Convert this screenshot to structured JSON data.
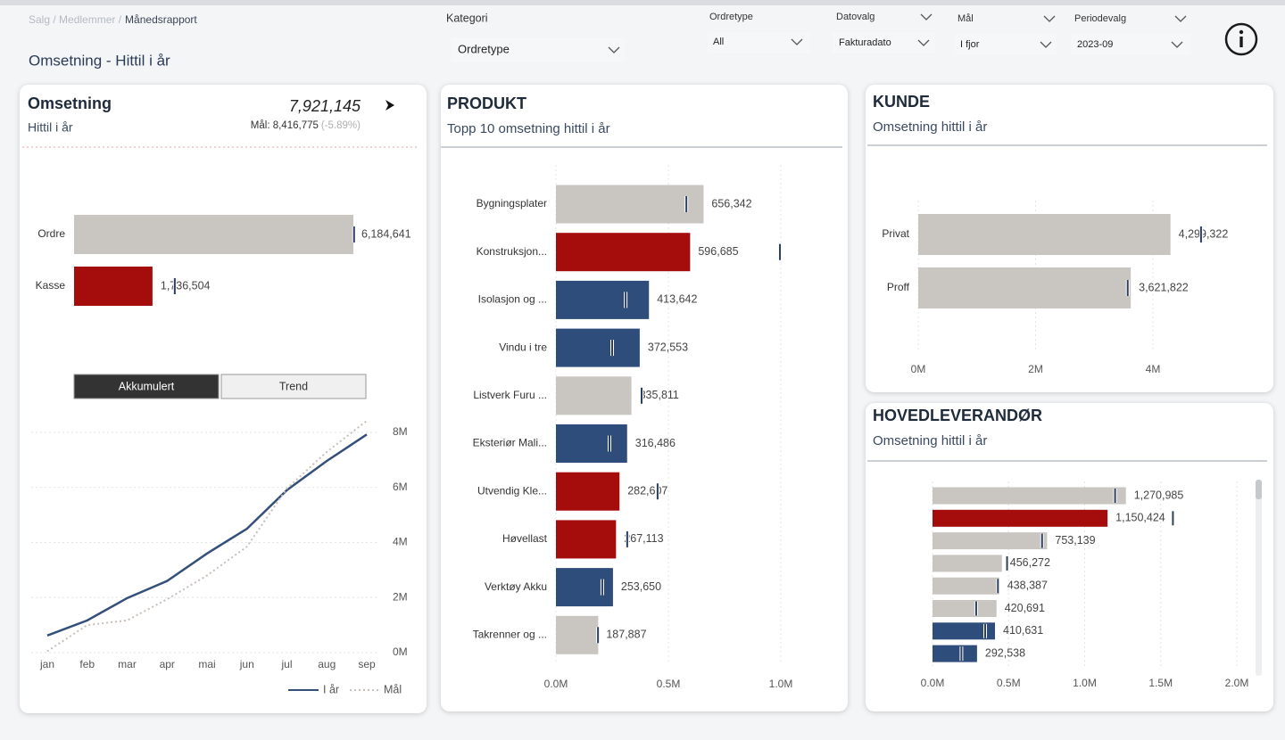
{
  "header": {
    "breadcrumb": [
      "Salg / Medlemmer /",
      "Månedsrapport"
    ],
    "title": "Omsetning - Hittil i år"
  },
  "filters": [
    {
      "label": "Kategori",
      "value": "Ordretype"
    },
    {
      "label": "Ordretype",
      "value": "All"
    },
    {
      "label": "Datovalg",
      "value": "Fakturadato"
    },
    {
      "label": "Mål",
      "value": "I fjor"
    },
    {
      "label": "Periodevalg",
      "value": "2023-09"
    }
  ],
  "kpi": {
    "title": "Omsetning",
    "subtitle": "Hittil i år",
    "value": "7,921,145",
    "target_label": "Mål: 8,416,775",
    "delta": "(-5.89%)"
  },
  "chart_data": [
    {
      "type": "bar",
      "orientation": "horizontal",
      "categories": [
        "Ordre",
        "Kasse"
      ],
      "values": [
        6184641,
        1736504
      ],
      "value_labels": [
        "6,184,641",
        "1,736,504"
      ],
      "colors": [
        "#c9c5c0",
        "#a50c0c"
      ],
      "targets": [
        6200000,
        2230000
      ],
      "target_color": "#2b3f60"
    },
    {
      "type": "line",
      "toggle": [
        "Akkumulert",
        "Trend"
      ],
      "categories": [
        "jan",
        "feb",
        "mar",
        "apr",
        "mai",
        "jun",
        "jul",
        "aug",
        "sep"
      ],
      "series": [
        {
          "name": "I år",
          "color": "#34507a",
          "line_style": "solid",
          "values": [
            620000,
            1170000,
            1980000,
            2600000,
            3600000,
            4500000,
            5900000,
            6960000,
            7921145
          ]
        },
        {
          "name": "Mål",
          "color": "#c8bfb9",
          "line_style": "dotted",
          "values": [
            50000,
            1000000,
            1170000,
            1940000,
            2800000,
            3850000,
            5960000,
            7290000,
            8416775
          ]
        }
      ],
      "ylim": [
        0,
        9000000
      ],
      "yticks": [
        {
          "value": 0,
          "label": "0M"
        },
        {
          "value": 2000000,
          "label": "2M"
        },
        {
          "value": 4000000,
          "label": "4M"
        },
        {
          "value": 6000000,
          "label": "6M"
        },
        {
          "value": 8000000,
          "label": "8M"
        }
      ],
      "grid": true
    },
    {
      "type": "bar",
      "orientation": "horizontal",
      "title": "PRODUKT",
      "subtitle": "Topp 10 omsetning hittil i år",
      "categories": [
        "Bygningsplater",
        "Konstruksjon...",
        "Isolasjon og ...",
        "Vindu i tre",
        "Listverk Furu ...",
        "Eksteriør Mali...",
        "Utvendig Kle...",
        "Høvellast",
        "Verktøy Akku",
        "Takrenner og ..."
      ],
      "values": [
        656342,
        596685,
        413642,
        372553,
        335811,
        316486,
        282607,
        267113,
        253650,
        187887
      ],
      "value_labels": [
        "656,342",
        "596,685",
        "413,642",
        "372,553",
        "335,811",
        "316,486",
        "282,607",
        "267,113",
        "253,650",
        "187,887"
      ],
      "colors": [
        "#c9c5c0",
        "#a50c0c",
        "#2e4d7a",
        "#2e4d7a",
        "#c9c5c0",
        "#2e4d7a",
        "#a50c0c",
        "#a50c0c",
        "#2e4d7a",
        "#c9c5c0"
      ],
      "targets": [
        580000,
        996000,
        310000,
        250000,
        381000,
        238000,
        452000,
        317000,
        206000,
        187000
      ],
      "target_color": "#2b3f60",
      "xlim": [
        0,
        1000000
      ],
      "xticks": [
        {
          "value": 0,
          "label": "0.0M"
        },
        {
          "value": 500000,
          "label": "0.5M"
        },
        {
          "value": 1000000,
          "label": "1.0M"
        }
      ],
      "grid": true
    },
    {
      "type": "bar",
      "orientation": "horizontal",
      "title": "KUNDE",
      "subtitle": "Omsetning hittil i år",
      "categories": [
        "Privat",
        "Proff"
      ],
      "values": [
        4299322,
        3621822
      ],
      "value_labels": [
        "4,299,322",
        "3,621,822"
      ],
      "colors": [
        "#c9c5c0",
        "#c9c5c0"
      ],
      "targets": [
        4820000,
        3570000
      ],
      "target_color": "#2b3f60",
      "xlim": [
        0,
        6000000
      ],
      "xticks": [
        {
          "value": 0,
          "label": "0M"
        },
        {
          "value": 2000000,
          "label": "2M"
        },
        {
          "value": 4000000,
          "label": "4M"
        }
      ],
      "grid": true
    },
    {
      "type": "bar",
      "orientation": "horizontal",
      "title": "HOVEDLEVERANDØR",
      "subtitle": "Omsetning hittil i år",
      "categories": [
        null,
        null,
        null,
        null,
        null,
        null,
        null,
        null
      ],
      "values": [
        1270985,
        1150424,
        753139,
        456272,
        438387,
        420691,
        410631,
        292538
      ],
      "value_labels": [
        "1,270,985",
        "1,150,424",
        "753,139",
        "456,272",
        "438,387",
        "420,691",
        "410,631",
        "292,538"
      ],
      "colors": [
        "#c9c5c0",
        "#a50c0c",
        "#c9c5c0",
        "#c9c5c0",
        "#c9c5c0",
        "#c9c5c0",
        "#2e4d7a",
        "#2e4d7a"
      ],
      "targets": [
        1200000,
        1580000,
        720000,
        490000,
        430000,
        287000,
        346000,
        190000
      ],
      "target_color": "#2b3f60",
      "xlim": [
        0,
        2000000
      ],
      "xticks": [
        {
          "value": 0,
          "label": "0.0M"
        },
        {
          "value": 500000,
          "label": "0.5M"
        },
        {
          "value": 1000000,
          "label": "1.0M"
        },
        {
          "value": 1500000,
          "label": "1.5M"
        },
        {
          "value": 2000000,
          "label": "2.0M"
        }
      ],
      "grid": true
    }
  ]
}
